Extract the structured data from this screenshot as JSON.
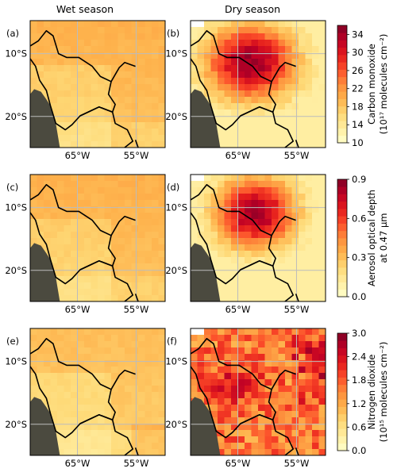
{
  "column_titles": [
    "Wet season",
    "Dry season"
  ],
  "panel_letters": [
    "(a)",
    "(b)",
    "(c)",
    "(d)",
    "(e)",
    "(f)"
  ],
  "lat_ticks": [
    "10°S",
    "20°S"
  ],
  "lon_ticks": [
    "65°W",
    "55°W"
  ],
  "colors": {
    "ramp": [
      "#ffffcc",
      "#ffeda0",
      "#fed976",
      "#feb24c",
      "#fd8d3c",
      "#fc4e2a",
      "#e31a1c",
      "#bd0026",
      "#800026"
    ],
    "mask": "#4b4a3f",
    "grid": "#bcbcbc",
    "border": "#000000"
  },
  "chart_data": [
    {
      "type": "heatmap",
      "rows": [
        {
          "variable": "Carbon monoxide",
          "colorbar": {
            "label_line1": "Carbon monoxide",
            "label_line2": "(10¹⁷ molecules cm⁻²)",
            "ticks": [
              "10",
              "14",
              "18",
              "22",
              "26",
              "30",
              "34"
            ],
            "range": [
              10,
              36
            ]
          },
          "wet_level": 17,
          "dry_min": 16,
          "dry_max": 35
        },
        {
          "variable": "Aerosol optical depth",
          "colorbar": {
            "label_line1": "Aerosol optical depth",
            "label_line2": "at 0.47 μm",
            "ticks": [
              "0.0",
              "0.3",
              "0.6",
              "0.9"
            ],
            "range": [
              0,
              0.9
            ]
          },
          "wet_level": 0.26,
          "dry_min": 0.2,
          "dry_max": 0.9
        },
        {
          "variable": "Nitrogen dioxide",
          "colorbar": {
            "label_line1": "Nitrogen dioxide",
            "label_line2": "(10¹⁵ molecules cm⁻²)",
            "ticks": [
              "0.0",
              "0.6",
              "1.2",
              "1.8",
              "2.4",
              "3.0"
            ],
            "range": [
              0,
              3
            ]
          },
          "wet_level": 0.8,
          "dry_min": 0.6,
          "dry_max": 2.8
        }
      ],
      "xlim": [
        "70°W",
        "50°W"
      ],
      "ylim": [
        "25°S",
        "5°S"
      ],
      "grid": true
    }
  ]
}
